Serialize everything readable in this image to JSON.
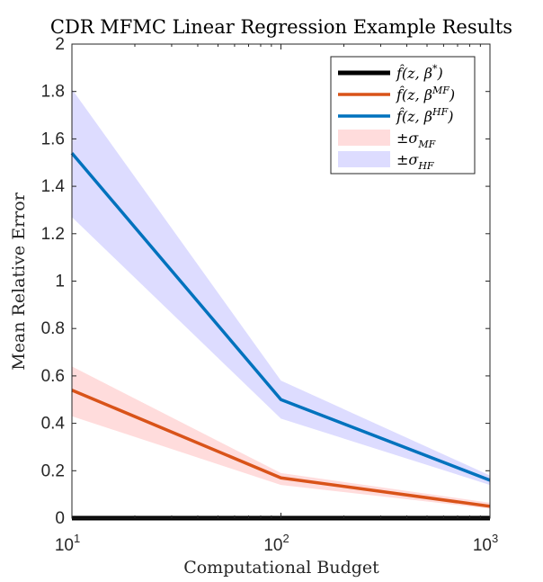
{
  "chart_data": {
    "type": "line",
    "title": "CDR MFMC Linear Regression Example Results",
    "xlabel": "Computational Budget",
    "ylabel": "Mean Relative Error",
    "xscale": "log",
    "xlim": [
      10,
      1000
    ],
    "ylim": [
      0,
      2
    ],
    "x": [
      10,
      100,
      1000
    ],
    "x_ticks": [
      {
        "value": 10,
        "base": "10",
        "exp": "1"
      },
      {
        "value": 100,
        "base": "10",
        "exp": "2"
      },
      {
        "value": 1000,
        "base": "10",
        "exp": "3"
      }
    ],
    "y_ticks": [
      "0",
      "0.2",
      "0.4",
      "0.6",
      "0.8",
      "1",
      "1.2",
      "1.4",
      "1.6",
      "1.8",
      "2"
    ],
    "series": [
      {
        "name": "f̂(z, β*)",
        "color": "#000000",
        "values": [
          0.0,
          0.0,
          0.0
        ]
      },
      {
        "name": "f̂(z, β^MF)",
        "color": "#D95319",
        "values": [
          0.54,
          0.17,
          0.05
        ]
      },
      {
        "name": "f̂(z, β^HF)",
        "color": "#0072BD",
        "values": [
          1.54,
          0.5,
          0.16
        ]
      }
    ],
    "bands": [
      {
        "name": "±σ_MF",
        "color": "#ffdcdc",
        "upper": [
          0.64,
          0.19,
          0.065
        ],
        "lower": [
          0.43,
          0.14,
          0.04
        ]
      },
      {
        "name": "±σ_HF",
        "color": "#dddcff",
        "upper": [
          1.81,
          0.58,
          0.18
        ],
        "lower": [
          1.27,
          0.42,
          0.14
        ]
      }
    ],
    "legend": {
      "position": "top-right",
      "entries": [
        {
          "kind": "line",
          "color": "#000000",
          "sup": "*"
        },
        {
          "kind": "line",
          "color": "#D95319",
          "sup": "MF"
        },
        {
          "kind": "line",
          "color": "#0072BD",
          "sup": "HF"
        },
        {
          "kind": "patch",
          "color": "#ffdcdc",
          "sub": "MF"
        },
        {
          "kind": "patch",
          "color": "#dddcff",
          "sub": "HF"
        }
      ]
    },
    "grid": false
  }
}
